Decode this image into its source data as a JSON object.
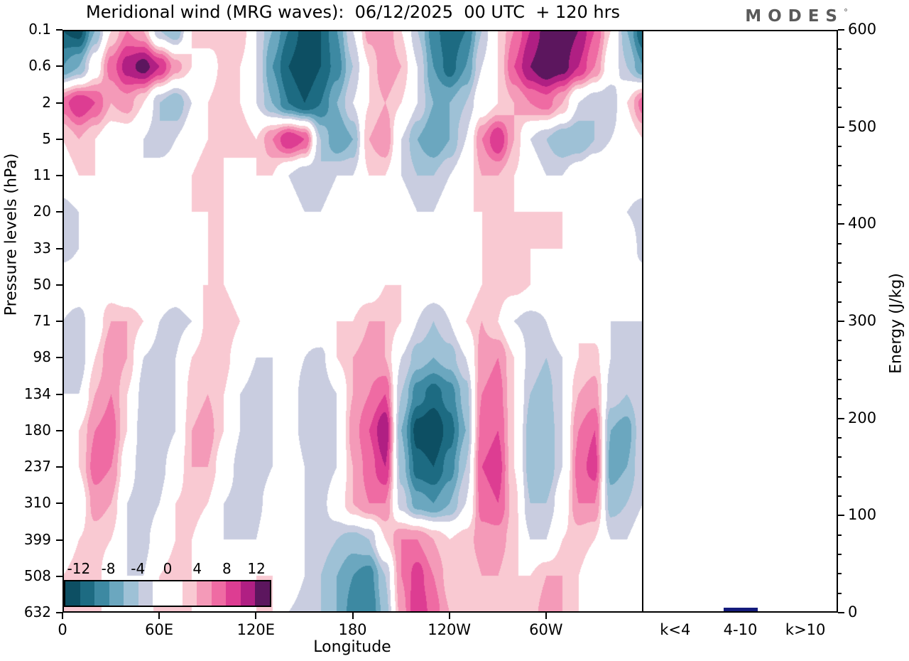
{
  "header": {
    "title": "Meridional wind (MRG waves):  06/12/2025  00 UTC  + 120 hrs",
    "logo": "MODES",
    "logo_mark": "°"
  },
  "axes": {
    "pressure_label": "Pressure levels (hPa)",
    "longitude_label": "Longitude",
    "energy_label": "Energy (J/kg)"
  },
  "chart_data": [
    {
      "type": "heatmap",
      "title": "Meridional wind (MRG waves): 06/12/2025 00 UTC + 120 hrs",
      "xlabel": "Longitude",
      "ylabel": "Pressure levels (hPa)",
      "x_range": [
        0,
        360
      ],
      "x_tick_values": [
        0,
        60,
        120,
        180,
        240,
        300
      ],
      "x_tick_labels": [
        "0",
        "60E",
        "120E",
        "180",
        "120W",
        "60W"
      ],
      "pressure_levels": [
        "0.1",
        "0.6",
        "2",
        "5",
        "11",
        "20",
        "33",
        "50",
        "71",
        "98",
        "134",
        "180",
        "237",
        "310",
        "399",
        "508",
        "632"
      ],
      "lon_start": 0,
      "lon_step": 10,
      "colorbar": {
        "boundaries": [
          -14,
          -12,
          -10,
          -8,
          -6,
          -4,
          -2,
          2,
          4,
          6,
          8,
          10,
          12,
          14
        ],
        "colors": [
          "#0d4f63",
          "#1d6b82",
          "#3d89a2",
          "#6ba7bf",
          "#9ec1d6",
          "#c9cde0",
          "#ffffff",
          "#f9c9d2",
          "#f49ab8",
          "#ef6ba3",
          "#dd3d92",
          "#b01f83",
          "#5c165e"
        ],
        "tick_values": [
          -12,
          -8,
          -4,
          0,
          4,
          8,
          12
        ],
        "tick_labels": [
          "-12",
          "-8",
          "-4",
          "0",
          "4",
          "8",
          "12"
        ]
      },
      "grid": [
        [
          -12,
          -13,
          -6,
          2,
          6,
          4,
          -4,
          -6,
          2,
          4,
          3,
          4,
          -2,
          -6,
          -10,
          -13,
          -12,
          -8,
          -2,
          5,
          6,
          2,
          -4,
          -9,
          -12,
          -10,
          -4,
          2,
          6,
          10,
          13,
          14,
          12,
          8,
          2,
          -6
        ],
        [
          -8,
          -6,
          0,
          7,
          11,
          13,
          10,
          5,
          2,
          0,
          3,
          2,
          -2,
          -8,
          -12,
          -14,
          -12,
          -9,
          -4,
          2,
          6,
          4,
          -2,
          -8,
          -11,
          -8,
          -2,
          2,
          8,
          12,
          14,
          13,
          10,
          6,
          0,
          -4
        ],
        [
          7,
          10,
          8,
          4,
          5,
          2,
          -4,
          -6,
          -2,
          2,
          4,
          2,
          -2,
          -6,
          -10,
          -12,
          -10,
          -6,
          -2,
          2,
          4,
          2,
          -2,
          -6,
          -6,
          -4,
          0,
          2,
          4,
          6,
          7,
          4,
          -2,
          -4,
          -4,
          2
        ],
        [
          2,
          4,
          2,
          0,
          0,
          -2,
          -4,
          -2,
          0,
          2,
          2,
          4,
          2,
          6,
          10,
          8,
          -4,
          -8,
          -6,
          4,
          6,
          -2,
          -6,
          -8,
          -6,
          -2,
          6,
          10,
          4,
          -2,
          -4,
          -6,
          -6,
          -4,
          -2,
          0
        ],
        [
          0,
          2,
          2,
          0,
          -2,
          -2,
          0,
          0,
          2,
          4,
          2,
          0,
          2,
          2,
          -2,
          -4,
          -4,
          -2,
          -2,
          2,
          2,
          -2,
          -4,
          -4,
          -2,
          0,
          4,
          4,
          2,
          0,
          -2,
          -2,
          0,
          2,
          2,
          0
        ],
        [
          -3,
          -2,
          0,
          0,
          0,
          0,
          0,
          0,
          2,
          2,
          2,
          0,
          0,
          2,
          0,
          -2,
          -2,
          0,
          0,
          0,
          0,
          0,
          -2,
          -2,
          0,
          2,
          2,
          2,
          2,
          2,
          2,
          2,
          0,
          0,
          0,
          -2
        ],
        [
          -3,
          -2,
          0,
          0,
          0,
          0,
          0,
          0,
          0,
          2,
          2,
          0,
          0,
          0,
          0,
          0,
          0,
          0,
          0,
          0,
          0,
          0,
          0,
          0,
          0,
          0,
          2,
          3,
          3,
          2,
          2,
          2,
          0,
          0,
          0,
          0
        ],
        [
          0,
          0,
          0,
          0,
          -2,
          -2,
          0,
          0,
          2,
          2,
          2,
          0,
          0,
          0,
          0,
          0,
          0,
          0,
          0,
          0,
          2,
          2,
          0,
          0,
          0,
          0,
          2,
          3,
          3,
          2,
          0,
          0,
          0,
          0,
          0,
          0
        ],
        [
          -2,
          -3,
          0,
          4,
          4,
          2,
          -2,
          -3,
          -2,
          3,
          4,
          2,
          0,
          -2,
          -2,
          0,
          2,
          2,
          2,
          4,
          4,
          2,
          -2,
          -4,
          -2,
          2,
          4,
          2,
          -2,
          -3,
          -2,
          2,
          2,
          0,
          -2,
          -2
        ],
        [
          -3,
          -4,
          2,
          6,
          4,
          -2,
          -3,
          -2,
          2,
          4,
          3,
          0,
          -2,
          -2,
          0,
          -2,
          -3,
          2,
          4,
          5,
          4,
          -2,
          -5,
          -6,
          -5,
          -2,
          5,
          6,
          2,
          -3,
          -4,
          -2,
          2,
          3,
          -2,
          -3
        ],
        [
          -2,
          -2,
          4,
          6,
          2,
          -3,
          -4,
          -2,
          3,
          4,
          2,
          -2,
          -3,
          -2,
          0,
          -3,
          -4,
          -2,
          4,
          6,
          8,
          -4,
          -9,
          -11,
          -9,
          -5,
          6,
          7,
          2,
          -4,
          -5,
          -2,
          4,
          5,
          -3,
          -4
        ],
        [
          -2,
          2,
          6,
          7,
          2,
          -4,
          -4,
          -2,
          4,
          5,
          2,
          -2,
          -4,
          -2,
          0,
          -3,
          -4,
          -2,
          5,
          8,
          12,
          -6,
          -13,
          -14,
          -11,
          -6,
          7,
          8,
          2,
          -5,
          -6,
          -2,
          6,
          8,
          -6,
          -7
        ],
        [
          -2,
          2,
          7,
          6,
          0,
          -4,
          -3,
          0,
          4,
          4,
          0,
          -3,
          -4,
          -2,
          2,
          -2,
          -4,
          -2,
          4,
          7,
          10,
          -5,
          -11,
          -12,
          -9,
          -4,
          8,
          9,
          2,
          -5,
          -6,
          -2,
          7,
          9,
          -7,
          -6
        ],
        [
          -2,
          0,
          5,
          4,
          -2,
          -4,
          -2,
          2,
          3,
          2,
          -2,
          -3,
          -3,
          0,
          2,
          -2,
          -3,
          0,
          4,
          6,
          6,
          -3,
          -7,
          -8,
          -6,
          -2,
          7,
          8,
          3,
          -4,
          -4,
          0,
          6,
          6,
          -5,
          -4
        ],
        [
          0,
          2,
          3,
          2,
          -2,
          -3,
          0,
          2,
          2,
          0,
          -2,
          -2,
          -2,
          2,
          2,
          -2,
          -3,
          -4,
          -5,
          -4,
          2,
          6,
          6,
          4,
          2,
          3,
          5,
          5,
          3,
          -2,
          -2,
          2,
          3,
          2,
          -2,
          -2
        ],
        [
          2,
          3,
          3,
          0,
          -2,
          -2,
          2,
          3,
          2,
          -2,
          -2,
          0,
          2,
          2,
          0,
          -2,
          -4,
          -6,
          -8,
          -9,
          -4,
          6,
          9,
          6,
          3,
          2,
          4,
          4,
          2,
          2,
          4,
          4,
          2,
          0,
          -2,
          0
        ],
        [
          2,
          4,
          3,
          0,
          -2,
          0,
          3,
          4,
          2,
          -2,
          -2,
          0,
          2,
          2,
          -2,
          -3,
          -4,
          -6,
          -9,
          -10,
          -5,
          5,
          10,
          7,
          4,
          2,
          3,
          3,
          2,
          3,
          5,
          4,
          2,
          0,
          -2,
          0
        ]
      ]
    },
    {
      "type": "bar",
      "categories": [
        "k<4",
        "4-10",
        "k>10"
      ],
      "values": [
        0,
        4,
        0
      ],
      "ylabel": "Energy (J/kg)",
      "ylim": [
        0,
        600
      ],
      "y_tick_step": 100,
      "y_minor_step": 20,
      "bar_color": "#141b7c"
    }
  ]
}
